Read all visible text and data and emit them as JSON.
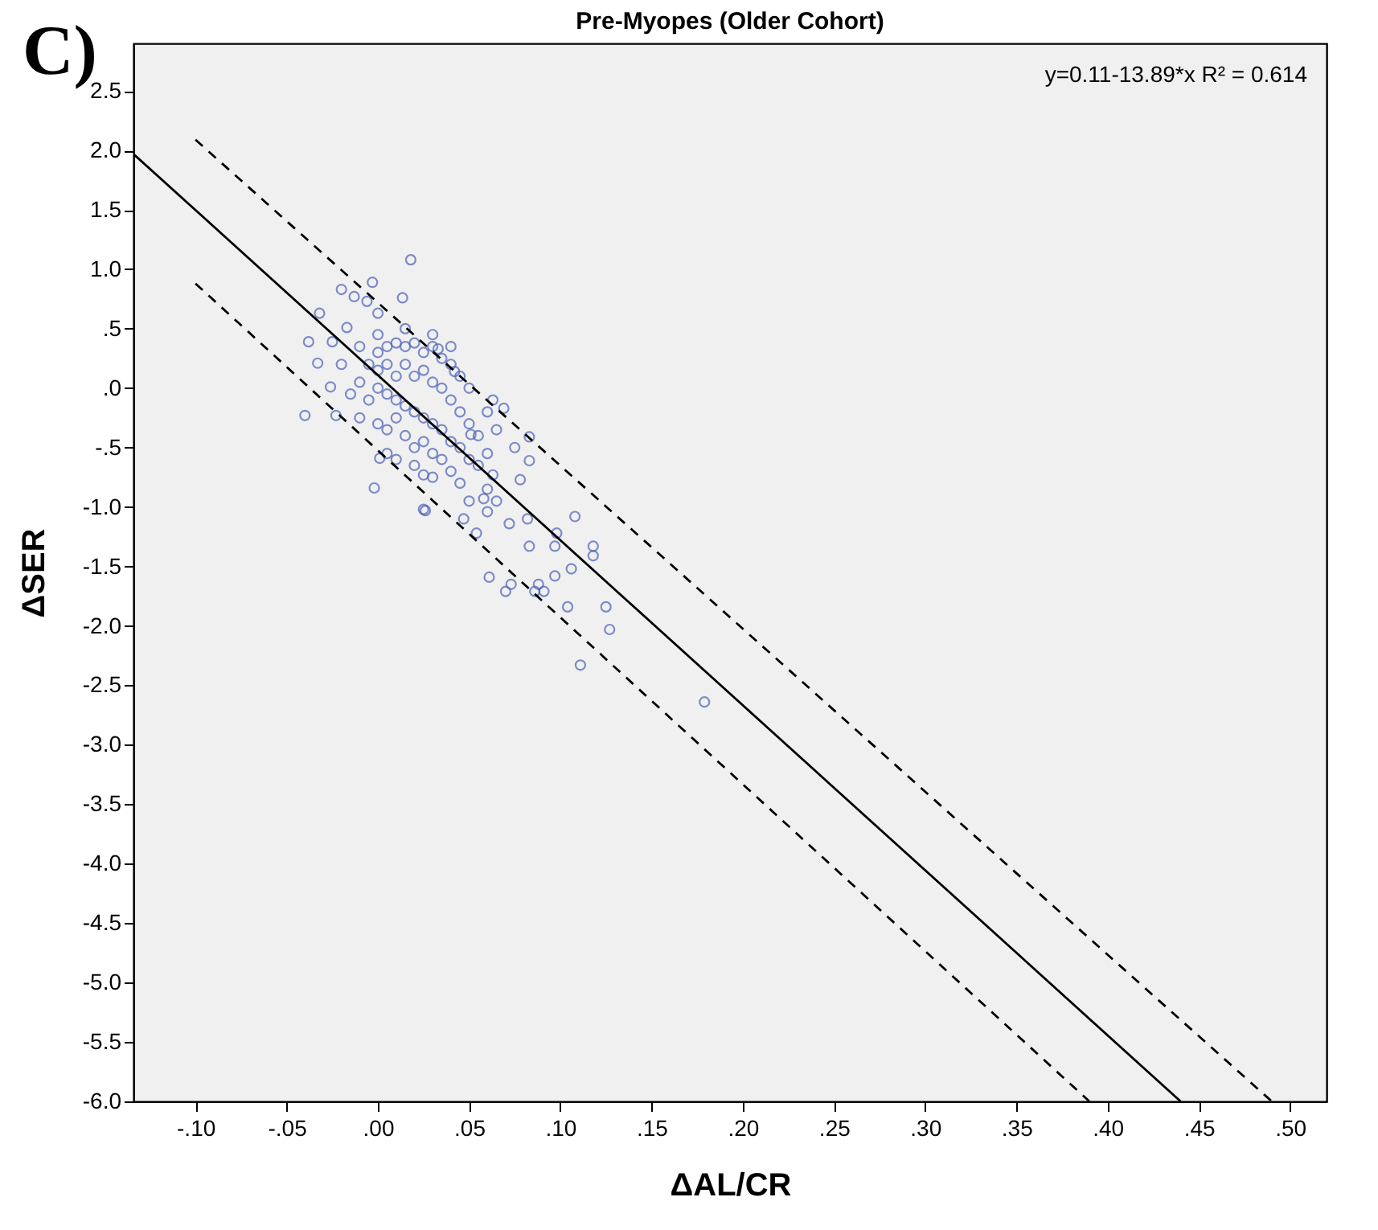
{
  "chart_data": {
    "type": "scatter",
    "title": "Pre-Myopes (Older Cohort)",
    "xlabel": "ΔAL/CR",
    "ylabel": "ΔSER",
    "annotations": [
      "y=0.11-13.89*x    R² = 0.614",
      "C)"
    ],
    "marker": "circle",
    "grid": false,
    "xlim": [
      -0.134,
      0.52
    ],
    "xticks": [
      {
        "value": -0.1,
        "label": "-.10"
      },
      {
        "value": -0.05,
        "label": "-.05"
      },
      {
        "value": 0,
        "label": ".00"
      },
      {
        "value": 0.05,
        "label": ".05"
      },
      {
        "value": 0.1,
        "label": ".10"
      },
      {
        "value": 0.15,
        "label": ".15"
      },
      {
        "value": 0.2,
        "label": ".20"
      },
      {
        "value": 0.25,
        "label": ".25"
      },
      {
        "value": 0.3,
        "label": ".30"
      },
      {
        "value": 0.35,
        "label": ".35"
      },
      {
        "value": 0.4,
        "label": ".40"
      },
      {
        "value": 0.45,
        "label": ".45"
      },
      {
        "value": 0.5,
        "label": ".50"
      }
    ],
    "ylim": [
      -6.0,
      2.9
    ],
    "yticks": [
      {
        "value": 2.5,
        "label": "2.5"
      },
      {
        "value": 2,
        "label": "2.0"
      },
      {
        "value": 1.5,
        "label": "1.5"
      },
      {
        "value": 1,
        "label": "1.0"
      },
      {
        "value": 0.5,
        "label": ".5"
      },
      {
        "value": 0,
        "label": ".0"
      },
      {
        "value": -0.5,
        "label": "-.5"
      },
      {
        "value": -1,
        "label": "-1.0"
      },
      {
        "value": -1.5,
        "label": "-1.5"
      },
      {
        "value": -2,
        "label": "-2.0"
      },
      {
        "value": -2.5,
        "label": "-2.5"
      },
      {
        "value": -3,
        "label": "-3.0"
      },
      {
        "value": -3.5,
        "label": "-3.5"
      },
      {
        "value": -4,
        "label": "-4.0"
      },
      {
        "value": -4.5,
        "label": "-4.5"
      },
      {
        "value": -5,
        "label": "-5.0"
      },
      {
        "value": -5.5,
        "label": "-5.5"
      },
      {
        "value": -6,
        "label": "-6.0"
      }
    ],
    "x": [
      0.018,
      -0.02,
      -0.003,
      0.0135,
      -0.013,
      -0.006,
      0.0,
      -0.032,
      -0.038,
      -0.033,
      -0.026,
      -0.04,
      -0.023,
      -0.017,
      -0.025,
      0.033,
      0.042,
      0.063,
      0.069,
      0.083,
      0.083,
      0.078,
      -0.002,
      0.025,
      0.047,
      0.063,
      0.058,
      0.06,
      0.072,
      0.082,
      0.108,
      0.083,
      0.098,
      0.118,
      0.054,
      0.001,
      0.025,
      0.051,
      0.026,
      0.097,
      0.118,
      0.061,
      0.073,
      0.07,
      0.088,
      0.086,
      0.091,
      0.097,
      0.106,
      0.104,
      0.125,
      0.127,
      0.111,
      0.179,
      0.0,
      0.005,
      0.01,
      0.015,
      0.02,
      0.025,
      0.03,
      0.035,
      0.04,
      0.045,
      0.05,
      0.0,
      0.005,
      0.01,
      0.015,
      0.02,
      0.025,
      0.03,
      0.035,
      0.04,
      0.045,
      0.05,
      0.055,
      -0.005,
      -0.01,
      -0.015,
      -0.005,
      0.0,
      0.005,
      0.01,
      0.015,
      0.02,
      0.025,
      0.03,
      0.035,
      0.04,
      0.045,
      0.05,
      0.0,
      0.005,
      0.01,
      0.015,
      0.02,
      0.025,
      0.03,
      0.035,
      0.04,
      -0.01,
      0.005,
      0.01,
      0.02,
      0.03,
      0.055,
      0.06,
      0.06,
      0.065,
      0.05,
      0.045,
      -0.02,
      -0.01,
      0.0,
      0.015,
      0.03,
      0.04,
      0.06,
      0.065,
      0.075
    ],
    "series": [
      {
        "color": "#4a60b8",
        "values": [
          1.08,
          0.83,
          0.89,
          0.76,
          0.77,
          0.73,
          0.63,
          0.63,
          0.39,
          0.21,
          0.01,
          -0.23,
          -0.23,
          0.51,
          0.39,
          0.33,
          0.14,
          -0.1,
          -0.17,
          -0.41,
          -0.61,
          -0.77,
          -0.84,
          -1.02,
          -1.1,
          -0.73,
          -0.93,
          -1.04,
          -1.14,
          -1.1,
          -1.08,
          -1.33,
          -1.22,
          -1.33,
          -1.22,
          -0.59,
          -0.73,
          -0.39,
          -1.03,
          -1.33,
          -1.41,
          -1.59,
          -1.65,
          -1.71,
          -1.65,
          -1.71,
          -1.71,
          -1.58,
          -1.52,
          -1.84,
          -1.84,
          -2.03,
          -2.33,
          -2.64,
          0.3,
          0.35,
          0.38,
          0.35,
          0.38,
          0.3,
          0.35,
          0.25,
          0.2,
          0.1,
          0.0,
          0.15,
          0.2,
          0.1,
          0.2,
          0.1,
          0.15,
          0.05,
          0.0,
          -0.1,
          -0.2,
          -0.3,
          -0.4,
          0.2,
          0.05,
          -0.05,
          -0.1,
          0.0,
          -0.05,
          -0.1,
          -0.15,
          -0.2,
          -0.25,
          -0.3,
          -0.35,
          -0.45,
          -0.5,
          -0.6,
          -0.3,
          -0.35,
          -0.25,
          -0.4,
          -0.5,
          -0.45,
          -0.55,
          -0.6,
          -0.7,
          -0.25,
          -0.55,
          -0.6,
          -0.65,
          -0.75,
          -0.65,
          -0.55,
          -0.85,
          -0.95,
          -0.95,
          -0.8,
          0.2,
          0.35,
          0.45,
          0.5,
          0.45,
          0.35,
          -0.2,
          -0.35,
          -0.5
        ]
      },
      {
        "type": "line",
        "marker": "none",
        "color": "#000000",
        "line_style": "solid",
        "x": [
          -0.134,
          0.44
        ],
        "values": [
          1.97,
          -6.0
        ]
      },
      {
        "type": "line",
        "marker": "none",
        "color": "#000000",
        "line_style": "dashed",
        "x": [
          -0.1,
          0.49
        ],
        "values": [
          2.09,
          -6.0
        ]
      },
      {
        "type": "line",
        "marker": "none",
        "color": "#000000",
        "line_style": "dashed",
        "x": [
          -0.1,
          0.39
        ],
        "values": [
          0.88,
          -6.0
        ]
      }
    ]
  }
}
